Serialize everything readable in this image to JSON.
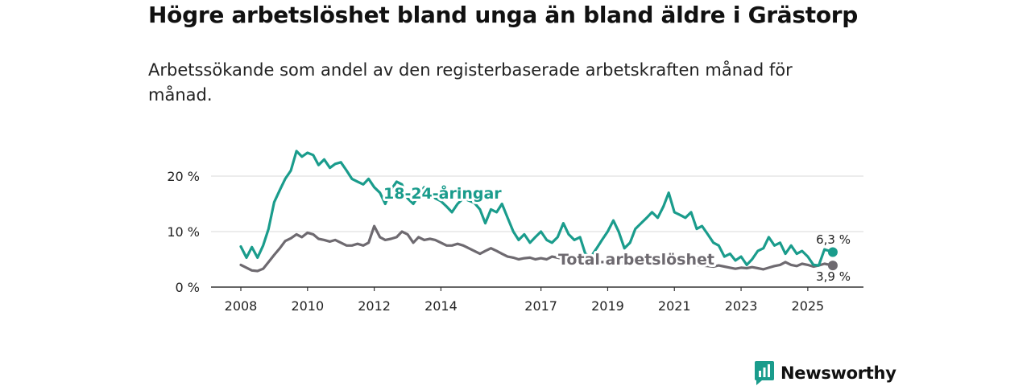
{
  "chart_data": {
    "type": "line",
    "title": "Högre arbetslöshet bland unga än bland äldre i Grästorp",
    "subtitle": "Arbetssökande som andel av den registerbaserade arbetskraften månad för månad.",
    "xlabel": "",
    "ylabel": "",
    "ylim": [
      0,
      25
    ],
    "yticks": [
      "0 %",
      "10 %",
      "20 %"
    ],
    "ytick_values": [
      0,
      10,
      20
    ],
    "xticks": [
      "2008",
      "2010",
      "2012",
      "2014",
      "2017",
      "2019",
      "2021",
      "2023",
      "2025"
    ],
    "xtick_values": [
      2008,
      2010,
      2012,
      2014,
      2017,
      2019,
      2021,
      2023,
      2025
    ],
    "xlim": [
      2008,
      2025.8
    ],
    "series": [
      {
        "name": "18-24-åringar",
        "color": "#1a9c8c",
        "points": [
          [
            2008.0,
            7.3
          ],
          [
            2008.17,
            5.3
          ],
          [
            2008.33,
            7.2
          ],
          [
            2008.5,
            5.3
          ],
          [
            2008.67,
            7.5
          ],
          [
            2008.83,
            10.5
          ],
          [
            2009.0,
            15.3
          ],
          [
            2009.17,
            17.5
          ],
          [
            2009.33,
            19.5
          ],
          [
            2009.5,
            21.0
          ],
          [
            2009.67,
            24.5
          ],
          [
            2009.83,
            23.5
          ],
          [
            2010.0,
            24.2
          ],
          [
            2010.17,
            23.8
          ],
          [
            2010.33,
            22.0
          ],
          [
            2010.5,
            23.0
          ],
          [
            2010.67,
            21.5
          ],
          [
            2010.83,
            22.2
          ],
          [
            2011.0,
            22.5
          ],
          [
            2011.17,
            21.0
          ],
          [
            2011.33,
            19.5
          ],
          [
            2011.5,
            19.0
          ],
          [
            2011.67,
            18.5
          ],
          [
            2011.83,
            19.5
          ],
          [
            2012.0,
            18.0
          ],
          [
            2012.17,
            17.0
          ],
          [
            2012.33,
            15.0
          ],
          [
            2012.5,
            17.5
          ],
          [
            2012.67,
            19.0
          ],
          [
            2012.83,
            18.5
          ],
          [
            2013.0,
            16.0
          ],
          [
            2013.17,
            15.0
          ],
          [
            2013.33,
            16.5
          ],
          [
            2013.5,
            18.0
          ],
          [
            2013.67,
            17.5
          ],
          [
            2013.83,
            16.0
          ],
          [
            2014.0,
            15.5
          ],
          [
            2014.17,
            14.5
          ],
          [
            2014.33,
            13.5
          ],
          [
            2014.5,
            15.0
          ],
          [
            2014.67,
            16.0
          ],
          [
            2015.0,
            15.2
          ],
          [
            2015.17,
            14.0
          ],
          [
            2015.33,
            11.5
          ],
          [
            2015.5,
            14.0
          ],
          [
            2015.67,
            13.5
          ],
          [
            2015.83,
            15.0
          ],
          [
            2016.0,
            12.5
          ],
          [
            2016.17,
            10.0
          ],
          [
            2016.33,
            8.5
          ],
          [
            2016.5,
            9.5
          ],
          [
            2016.67,
            8.0
          ],
          [
            2016.83,
            9.0
          ],
          [
            2017.0,
            10.0
          ],
          [
            2017.17,
            8.5
          ],
          [
            2017.33,
            8.0
          ],
          [
            2017.5,
            9.0
          ],
          [
            2017.67,
            11.5
          ],
          [
            2017.83,
            9.5
          ],
          [
            2018.0,
            8.5
          ],
          [
            2018.17,
            9.0
          ],
          [
            2018.33,
            6.0
          ],
          [
            2018.5,
            5.5
          ],
          [
            2018.67,
            7.0
          ],
          [
            2018.83,
            8.5
          ],
          [
            2019.0,
            10.0
          ],
          [
            2019.17,
            12.0
          ],
          [
            2019.33,
            10.0
          ],
          [
            2019.5,
            7.0
          ],
          [
            2019.67,
            8.0
          ],
          [
            2019.83,
            10.5
          ],
          [
            2020.0,
            11.5
          ],
          [
            2020.17,
            12.5
          ],
          [
            2020.33,
            13.5
          ],
          [
            2020.5,
            12.5
          ],
          [
            2020.67,
            14.5
          ],
          [
            2020.83,
            17.0
          ],
          [
            2021.0,
            13.5
          ],
          [
            2021.17,
            13.0
          ],
          [
            2021.33,
            12.5
          ],
          [
            2021.5,
            13.5
          ],
          [
            2021.67,
            10.5
          ],
          [
            2021.83,
            11.0
          ],
          [
            2022.0,
            9.5
          ],
          [
            2022.17,
            8.0
          ],
          [
            2022.33,
            7.5
          ],
          [
            2022.5,
            5.5
          ],
          [
            2022.67,
            6.0
          ],
          [
            2022.83,
            4.8
          ],
          [
            2023.0,
            5.5
          ],
          [
            2023.17,
            4.0
          ],
          [
            2023.33,
            5.0
          ],
          [
            2023.5,
            6.5
          ],
          [
            2023.67,
            7.0
          ],
          [
            2023.83,
            9.0
          ],
          [
            2024.0,
            7.5
          ],
          [
            2024.17,
            8.0
          ],
          [
            2024.33,
            6.0
          ],
          [
            2024.5,
            7.5
          ],
          [
            2024.67,
            6.0
          ],
          [
            2024.83,
            6.5
          ],
          [
            2025.0,
            5.5
          ],
          [
            2025.17,
            4.0
          ],
          [
            2025.33,
            3.9
          ],
          [
            2025.5,
            6.8
          ],
          [
            2025.75,
            6.3
          ]
        ],
        "end_label": "6,3 %"
      },
      {
        "name": "Total arbetslöshet",
        "color": "#6e6a70",
        "points": [
          [
            2008.0,
            4.0
          ],
          [
            2008.17,
            3.5
          ],
          [
            2008.33,
            3.0
          ],
          [
            2008.5,
            2.9
          ],
          [
            2008.67,
            3.3
          ],
          [
            2008.83,
            4.5
          ],
          [
            2009.0,
            5.8
          ],
          [
            2009.17,
            7.0
          ],
          [
            2009.33,
            8.3
          ],
          [
            2009.5,
            8.8
          ],
          [
            2009.67,
            9.5
          ],
          [
            2009.83,
            9.0
          ],
          [
            2010.0,
            9.8
          ],
          [
            2010.17,
            9.5
          ],
          [
            2010.33,
            8.7
          ],
          [
            2010.5,
            8.5
          ],
          [
            2010.67,
            8.2
          ],
          [
            2010.83,
            8.5
          ],
          [
            2011.0,
            8.0
          ],
          [
            2011.17,
            7.5
          ],
          [
            2011.33,
            7.5
          ],
          [
            2011.5,
            7.8
          ],
          [
            2011.67,
            7.5
          ],
          [
            2011.83,
            8.0
          ],
          [
            2012.0,
            11.0
          ],
          [
            2012.17,
            9.0
          ],
          [
            2012.33,
            8.5
          ],
          [
            2012.5,
            8.7
          ],
          [
            2012.67,
            9.0
          ],
          [
            2012.83,
            10.0
          ],
          [
            2013.0,
            9.5
          ],
          [
            2013.17,
            8.0
          ],
          [
            2013.33,
            9.0
          ],
          [
            2013.5,
            8.5
          ],
          [
            2013.67,
            8.7
          ],
          [
            2013.83,
            8.5
          ],
          [
            2014.0,
            8.0
          ],
          [
            2014.17,
            7.5
          ],
          [
            2014.33,
            7.5
          ],
          [
            2014.5,
            7.8
          ],
          [
            2014.67,
            7.5
          ],
          [
            2015.0,
            6.5
          ],
          [
            2015.17,
            6.0
          ],
          [
            2015.33,
            6.5
          ],
          [
            2015.5,
            7.0
          ],
          [
            2015.67,
            6.5
          ],
          [
            2015.83,
            6.0
          ],
          [
            2016.0,
            5.5
          ],
          [
            2016.17,
            5.3
          ],
          [
            2016.33,
            5.0
          ],
          [
            2016.5,
            5.2
          ],
          [
            2016.67,
            5.3
          ],
          [
            2016.83,
            5.0
          ],
          [
            2017.0,
            5.2
          ],
          [
            2017.17,
            5.0
          ],
          [
            2017.33,
            5.5
          ],
          [
            2017.5,
            5.3
          ],
          [
            2017.67,
            5.0
          ],
          [
            2017.83,
            4.8
          ],
          [
            2018.0,
            4.5
          ],
          [
            2018.17,
            4.5
          ],
          [
            2018.33,
            4.3
          ],
          [
            2018.5,
            4.2
          ],
          [
            2018.67,
            4.5
          ],
          [
            2018.83,
            4.5
          ],
          [
            2019.0,
            4.5
          ],
          [
            2019.17,
            4.3
          ],
          [
            2019.33,
            4.5
          ],
          [
            2019.5,
            4.2
          ],
          [
            2019.67,
            4.5
          ],
          [
            2019.83,
            4.5
          ],
          [
            2020.0,
            4.5
          ],
          [
            2020.17,
            4.5
          ],
          [
            2020.33,
            4.8
          ],
          [
            2020.5,
            4.5
          ],
          [
            2020.67,
            4.5
          ],
          [
            2020.83,
            4.2
          ],
          [
            2021.0,
            4.3
          ],
          [
            2021.17,
            4.2
          ],
          [
            2021.33,
            4.0
          ],
          [
            2021.5,
            4.2
          ],
          [
            2021.67,
            4.0
          ],
          [
            2021.83,
            3.9
          ],
          [
            2022.0,
            3.8
          ],
          [
            2022.17,
            3.7
          ],
          [
            2022.33,
            3.9
          ],
          [
            2022.5,
            3.7
          ],
          [
            2022.67,
            3.5
          ],
          [
            2022.83,
            3.3
          ],
          [
            2023.0,
            3.5
          ],
          [
            2023.17,
            3.4
          ],
          [
            2023.33,
            3.6
          ],
          [
            2023.5,
            3.4
          ],
          [
            2023.67,
            3.2
          ],
          [
            2023.83,
            3.5
          ],
          [
            2024.0,
            3.8
          ],
          [
            2024.17,
            4.0
          ],
          [
            2024.33,
            4.5
          ],
          [
            2024.5,
            4.0
          ],
          [
            2024.67,
            3.8
          ],
          [
            2024.83,
            4.2
          ],
          [
            2025.0,
            4.0
          ],
          [
            2025.17,
            3.7
          ],
          [
            2025.33,
            3.9
          ],
          [
            2025.5,
            4.2
          ],
          [
            2025.75,
            3.9
          ]
        ],
        "end_label": "3,9 %"
      }
    ],
    "series_labels": {
      "youth": "18-24-åringar",
      "total": "Total arbetslöshet"
    },
    "grid": true
  },
  "brand": {
    "name": "Newsworthy",
    "logo_icon": "newsworthy-logo-icon",
    "color": "#1a9c8c"
  }
}
